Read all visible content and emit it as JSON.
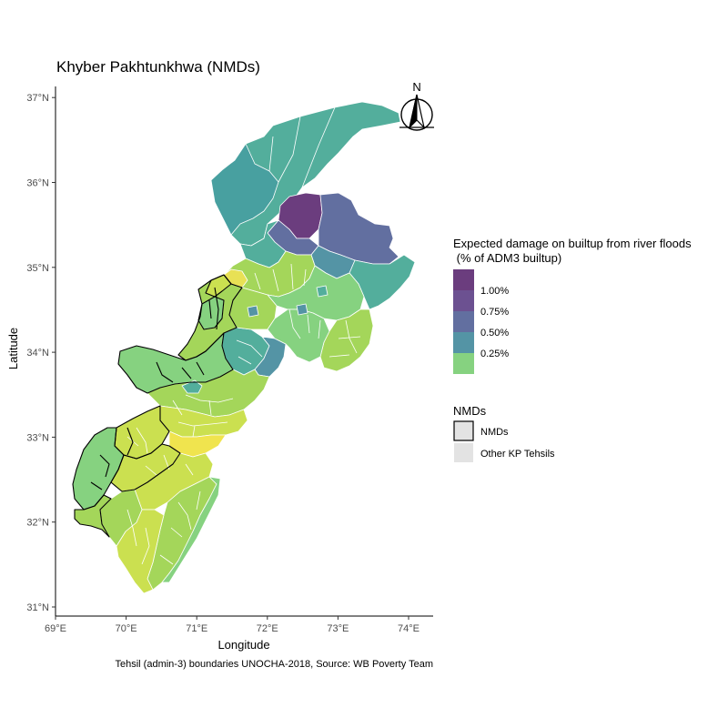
{
  "map": {
    "title": "Khyber Pakhtunkhwa (NMDs)",
    "caption": "Tehsil (admin-3) boundaries UNOCHA-2018, Source: WB Poverty Team",
    "north_arrow_label": "N",
    "x_axis": {
      "title": "Longitude",
      "ticks": [
        {
          "value": 69,
          "label": "69°E"
        },
        {
          "value": 70,
          "label": "70°E"
        },
        {
          "value": 71,
          "label": "71°E"
        },
        {
          "value": 72,
          "label": "72°E"
        },
        {
          "value": 73,
          "label": "73°E"
        },
        {
          "value": 74,
          "label": "74°E"
        }
      ]
    },
    "y_axis": {
      "title": "Latitude",
      "ticks": [
        {
          "value": 31,
          "label": "31°N"
        },
        {
          "value": 32,
          "label": "32°N"
        },
        {
          "value": 33,
          "label": "33°N"
        },
        {
          "value": 34,
          "label": "34°N"
        },
        {
          "value": 35,
          "label": "35°N"
        },
        {
          "value": 36,
          "label": "36°N"
        },
        {
          "value": 37,
          "label": "37°N"
        }
      ]
    }
  },
  "legend": {
    "fill_title_line1": "Expected damage on builtup from river floods",
    "fill_title_line2": " (% of ADM3 builtup)",
    "fill_items": [
      {
        "label": "",
        "color": "#6b3d7e"
      },
      {
        "label": "1.00%",
        "color": "#6c5191"
      },
      {
        "label": "0.75%",
        "color": "#626fa0"
      },
      {
        "label": "0.50%",
        "color": "#5494a5"
      },
      {
        "label": "0.25%",
        "color": "#86d280"
      }
    ],
    "outline_title": "NMDs",
    "outline_items": [
      {
        "label": "NMDs",
        "fill": "#e3e3e3",
        "stroke": "#000000"
      },
      {
        "label": "Other KP Tehsils",
        "fill": "#e3e3e3",
        "stroke": "none"
      }
    ]
  },
  "colors": {
    "scale_high": "#6b3d7e",
    "scale_mid": "#5494a5",
    "scale_low": "#86d280",
    "scale_min": "#f0e44e",
    "tehsil_border": "#ffffff",
    "nmd_border": "#000000"
  }
}
